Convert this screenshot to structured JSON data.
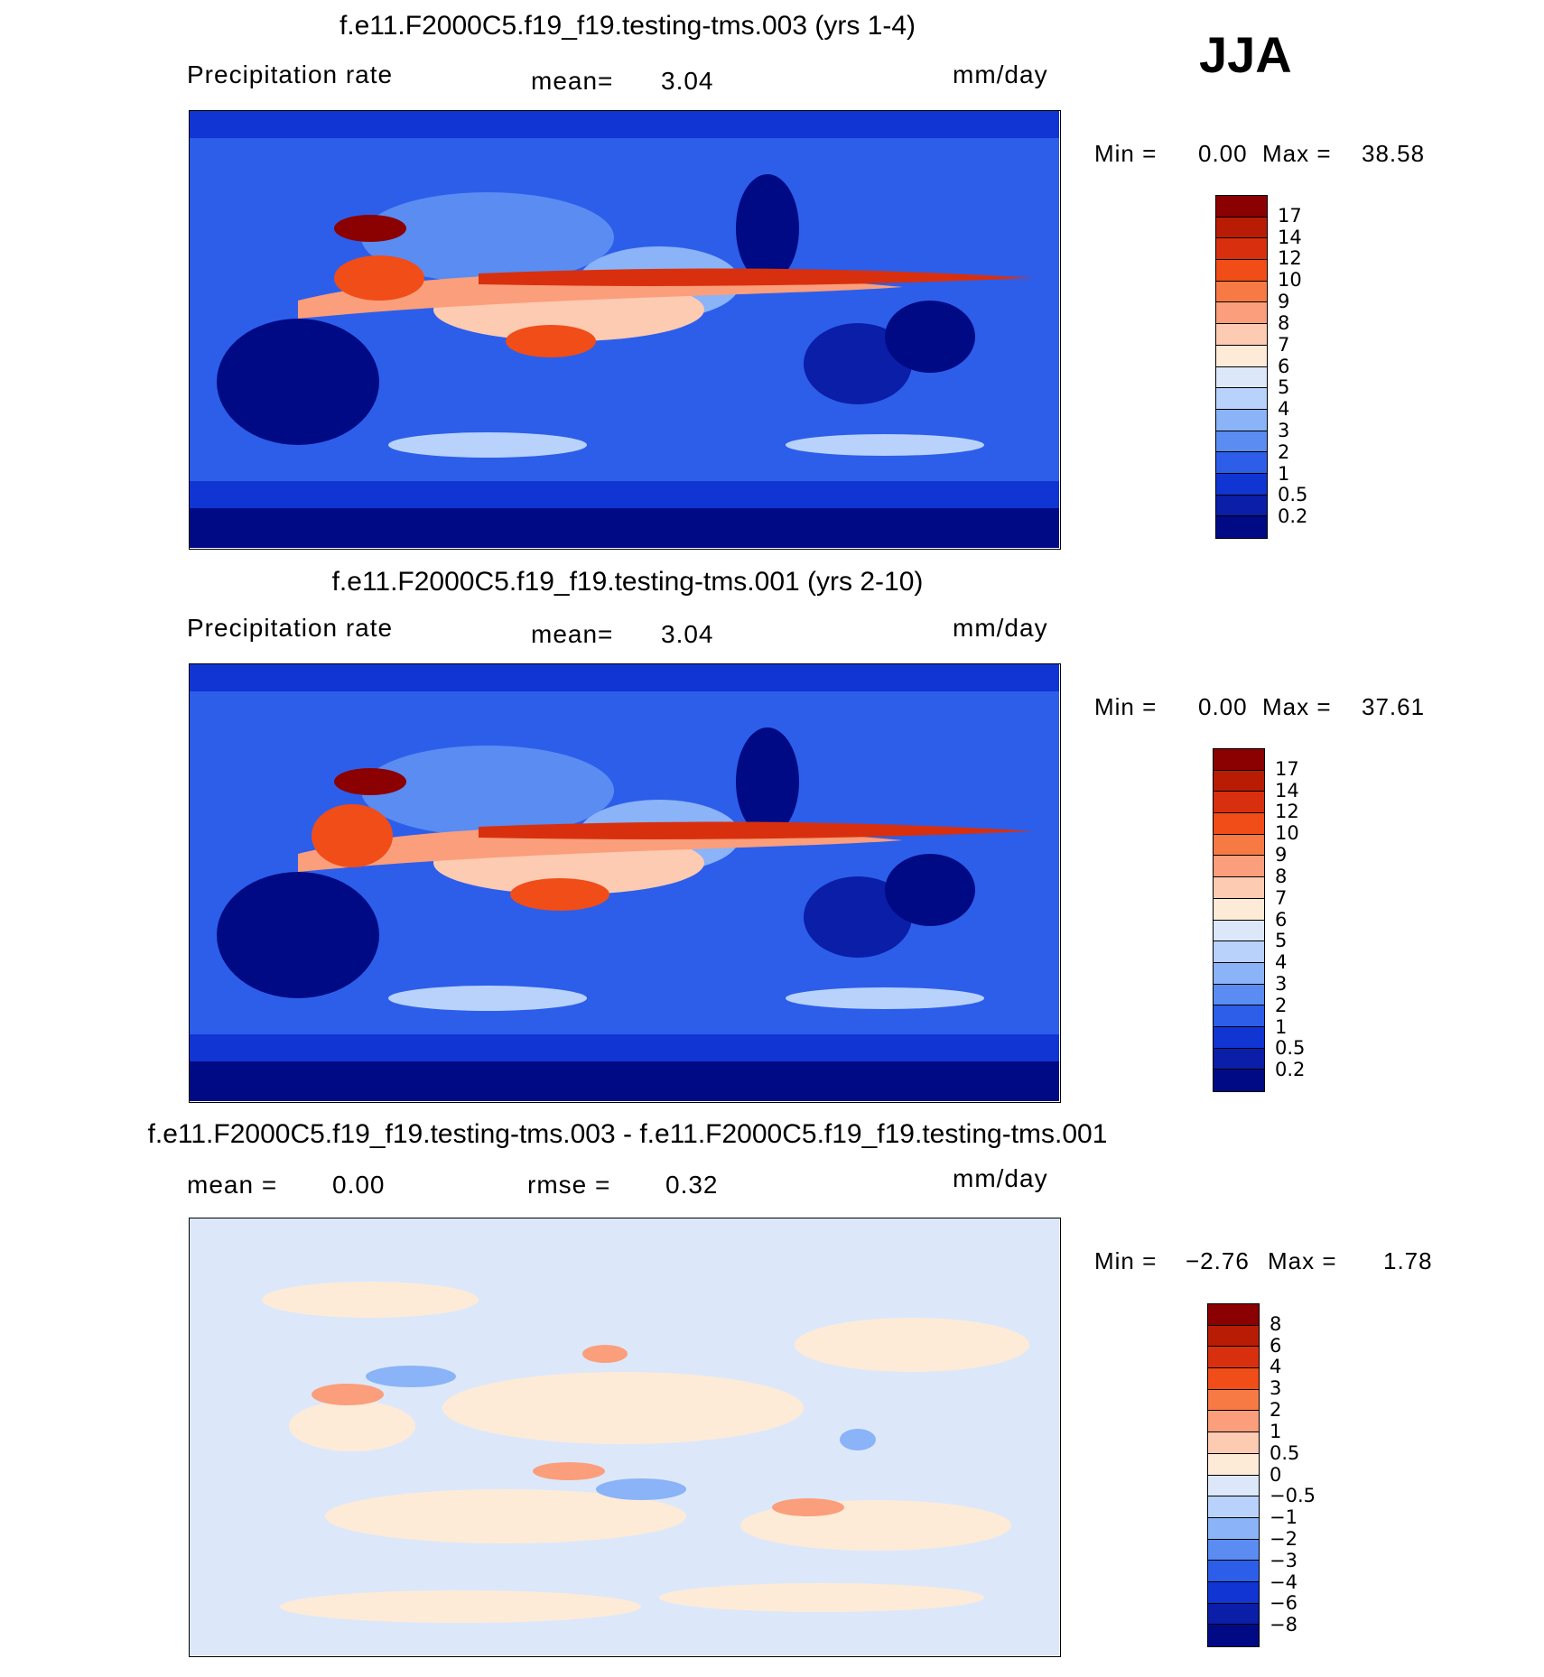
{
  "season": "JJA",
  "panels": [
    {
      "title": "f.e11.F2000C5.f19_f19.testing-tms.003 (yrs 1-4)",
      "variable": "Precipitation rate",
      "stat_label": "mean=",
      "stat_value": "3.04",
      "units": "mm/day",
      "min_label": "Min =",
      "min_value": "0.00",
      "max_label": "Max =",
      "max_value": "38.58",
      "levels": [
        "17",
        "14",
        "12",
        "10",
        "9",
        "8",
        "7",
        "6",
        "5",
        "4",
        "3",
        "2",
        "1",
        "0.5",
        "0.2"
      ],
      "colors": [
        "#8b0000",
        "#b81c05",
        "#d8300e",
        "#f04d18",
        "#f77a45",
        "#fb9e7b",
        "#fdcab2",
        "#fdebd8",
        "#dce8fa",
        "#b8d2fb",
        "#8ab3f8",
        "#5a8cf2",
        "#2d5eea",
        "#1035d3",
        "#0a1ea8",
        "#000a85"
      ]
    },
    {
      "title": "f.e11.F2000C5.f19_f19.testing-tms.001 (yrs 2-10)",
      "variable": "Precipitation rate",
      "stat_label": "mean=",
      "stat_value": "3.04",
      "units": "mm/day",
      "min_label": "Min =",
      "min_value": "0.00",
      "max_label": "Max =",
      "max_value": "37.61",
      "levels": [
        "17",
        "14",
        "12",
        "10",
        "9",
        "8",
        "7",
        "6",
        "5",
        "4",
        "3",
        "2",
        "1",
        "0.5",
        "0.2"
      ],
      "colors": [
        "#8b0000",
        "#b81c05",
        "#d8300e",
        "#f04d18",
        "#f77a45",
        "#fb9e7b",
        "#fdcab2",
        "#fdebd8",
        "#dce8fa",
        "#b8d2fb",
        "#8ab3f8",
        "#5a8cf2",
        "#2d5eea",
        "#1035d3",
        "#0a1ea8",
        "#000a85"
      ]
    },
    {
      "title": "f.e11.F2000C5.f19_f19.testing-tms.003 - f.e11.F2000C5.f19_f19.testing-tms.001",
      "mean_label": "mean =",
      "mean_value": "0.00",
      "rmse_label": "rmse =",
      "rmse_value": "0.32",
      "units": "mm/day",
      "min_label": "Min =",
      "min_value": "−2.76",
      "max_label": "Max =",
      "max_value": "1.78",
      "levels": [
        "8",
        "6",
        "4",
        "3",
        "2",
        "1",
        "0.5",
        "0",
        "−0.5",
        "−1",
        "−2",
        "−3",
        "−4",
        "−6",
        "−8"
      ],
      "colors": [
        "#8b0000",
        "#b81c05",
        "#d8300e",
        "#f04d18",
        "#f77a45",
        "#fb9e7b",
        "#fdcab2",
        "#fdebd8",
        "#dce8fa",
        "#b8d2fb",
        "#8ab3f8",
        "#5a8cf2",
        "#2d5eea",
        "#1035d3",
        "#0a1ea8",
        "#000a85"
      ]
    }
  ]
}
